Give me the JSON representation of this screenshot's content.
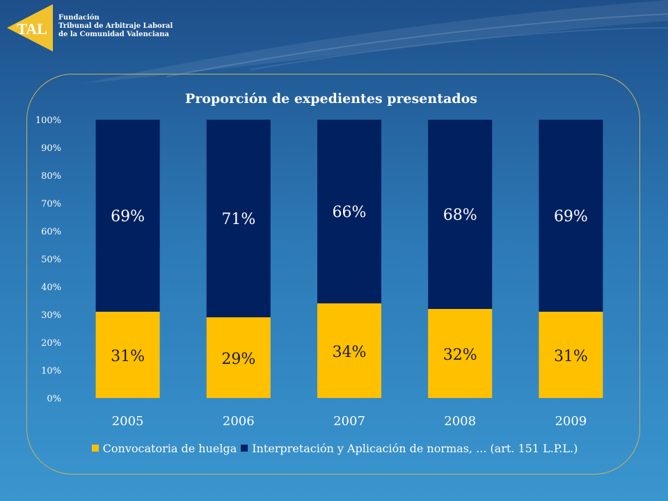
{
  "organization": {
    "logo_text": "TAL",
    "lines": [
      "Fundación",
      "Tribunal de Arbitraje Laboral",
      "de la Comunidad Valenciana"
    ]
  },
  "colors": {
    "series_1": "#ffc000",
    "series_2": "#002060",
    "text": "#ffffff",
    "logo": "#f2c12e"
  },
  "chart_data": {
    "type": "bar",
    "stacked": true,
    "title": "Proporción de expedientes presentados",
    "categories": [
      "2005",
      "2006",
      "2007",
      "2008",
      "2009"
    ],
    "series": [
      {
        "name": "Convocatoria de huelga",
        "values": [
          31,
          29,
          34,
          32,
          31
        ],
        "labels": [
          "31%",
          "29%",
          "34%",
          "32%",
          "31%"
        ]
      },
      {
        "name": "Interpretación y Aplicación de normas, ... (art. 151 L.P.L.)",
        "values": [
          69,
          71,
          66,
          68,
          69
        ],
        "labels": [
          "69%",
          "71%",
          "66%",
          "68%",
          "69%"
        ]
      }
    ],
    "ylim": [
      0,
      100
    ],
    "yticks": [
      "0%",
      "10%",
      "20%",
      "30%",
      "40%",
      "50%",
      "60%",
      "70%",
      "80%",
      "90%",
      "100%"
    ],
    "xlabel": "",
    "ylabel": "",
    "grid": false,
    "legend_position": "bottom"
  }
}
